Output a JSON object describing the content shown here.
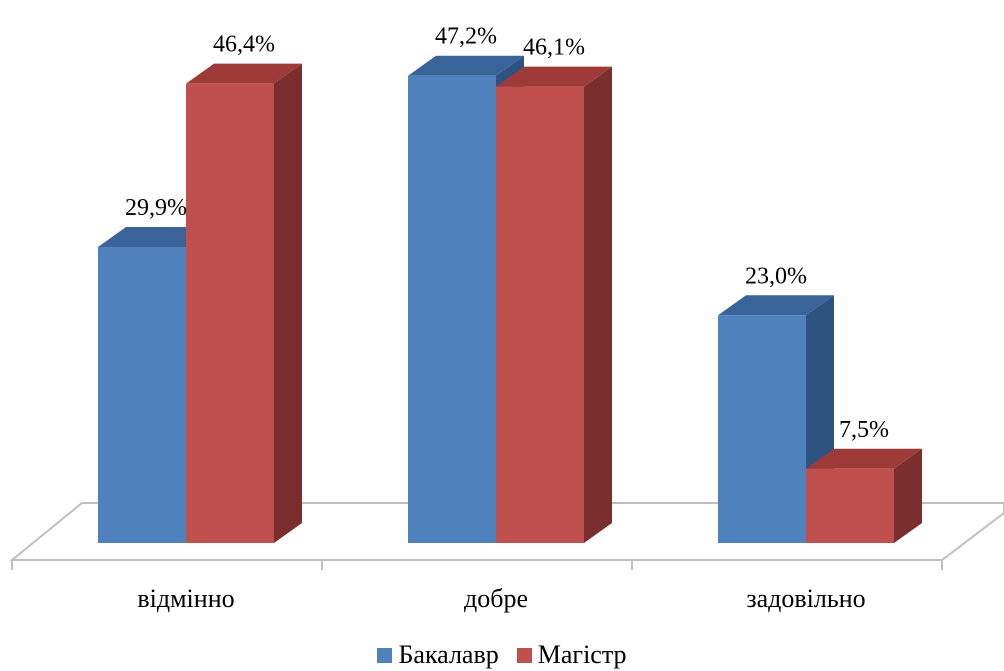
{
  "chart_data": {
    "type": "bar",
    "three_d": true,
    "categories": [
      "відмінно",
      "добре",
      "задовільно"
    ],
    "series": [
      {
        "name": "Бакалавр",
        "values": [
          29.9,
          47.2,
          23.0
        ],
        "labels": [
          "29,9%",
          "47,2%",
          "23,0%"
        ],
        "color": "#4f81bd",
        "side_color": "#2e5380",
        "top_color": "#3a639a"
      },
      {
        "name": "Магістр",
        "values": [
          46.4,
          46.1,
          7.5
        ],
        "labels": [
          "46,4%",
          "46,1%",
          "7,5%"
        ],
        "color": "#c0504d",
        "side_color": "#7a2f2e",
        "top_color": "#9e3b39"
      }
    ],
    "ylim": [
      0,
      50
    ],
    "grid": false,
    "legend_position": "bottom"
  }
}
